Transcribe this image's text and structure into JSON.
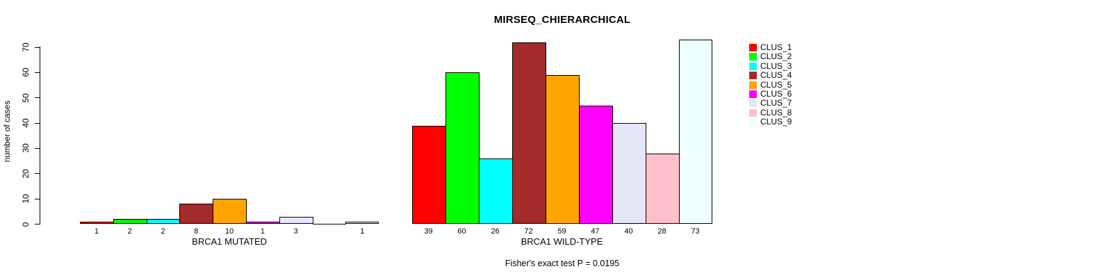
{
  "chart_data": {
    "type": "bar",
    "title": "MIRSEQ_CHIERARCHICAL",
    "ylabel": "number of cases",
    "xlabel": "",
    "ylim": [
      0,
      70
    ],
    "yticks": [
      0,
      10,
      20,
      30,
      40,
      50,
      60,
      70
    ],
    "grid": false,
    "legend_position": "right",
    "legend": [
      {
        "label": "CLUS_1",
        "color": "#FF0000"
      },
      {
        "label": "CLUS_2",
        "color": "#00FF00"
      },
      {
        "label": "CLUS_3",
        "color": "#00FFFF"
      },
      {
        "label": "CLUS_4",
        "color": "#A52A2A"
      },
      {
        "label": "CLUS_5",
        "color": "#FFA500"
      },
      {
        "label": "CLUS_6",
        "color": "#FF00FF"
      },
      {
        "label": "CLUS_7",
        "color": "#E6E6FA"
      },
      {
        "label": "CLUS_8",
        "color": "#FFC0CB"
      },
      {
        "label": "CLUS_9",
        "color": "#F0FFFF"
      }
    ],
    "groups": [
      {
        "label": "BRCA1 MUTATED",
        "values": [
          1,
          2,
          2,
          8,
          10,
          1,
          3,
          0,
          1
        ],
        "bar_labels": [
          "1",
          "2",
          "2",
          "8",
          "10",
          "1",
          "3",
          "",
          "1"
        ]
      },
      {
        "label": "BRCA1 WILD-TYPE",
        "values": [
          39,
          60,
          26,
          72,
          59,
          47,
          40,
          28,
          73
        ],
        "bar_labels": [
          "39",
          "60",
          "26",
          "72",
          "59",
          "47",
          "40",
          "28",
          "73"
        ]
      }
    ],
    "footnote": "Fisher's exact test P = 0.0195"
  }
}
